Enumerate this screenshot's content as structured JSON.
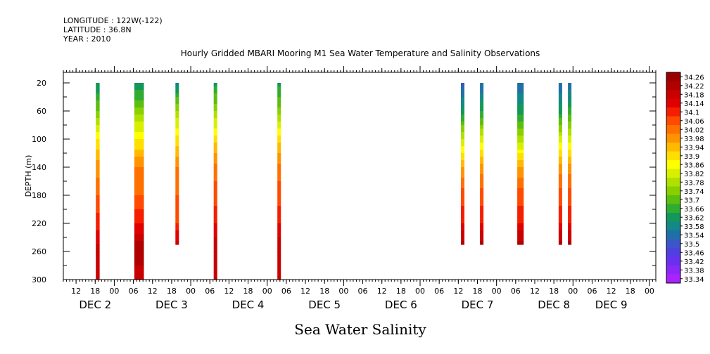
{
  "header": {
    "longitude": "LONGITUDE : 122W(-122)",
    "latitude": "LATITUDE : 36.8N",
    "year": "YEAR : 2010"
  },
  "chart_data": {
    "type": "heatmap",
    "title": "Hourly Gridded MBARI Mooring M1 Sea Water Temperature and Salinity Observations",
    "xlabel": "Sea Water Salinity",
    "ylabel": "DEPTH (m)",
    "x_unit": "hours since Dec 2 00:00, 2010",
    "xlim": [
      -16,
      170
    ],
    "ylim": [
      300,
      5
    ],
    "y_ticks": [
      20,
      60,
      100,
      140,
      180,
      220,
      260,
      300
    ],
    "x_hour_ticks": [
      {
        "h": -12,
        "label": "12"
      },
      {
        "h": -6,
        "label": "18"
      },
      {
        "h": 0,
        "label": "00"
      },
      {
        "h": 6,
        "label": "06"
      },
      {
        "h": 12,
        "label": "12"
      },
      {
        "h": 18,
        "label": "18"
      },
      {
        "h": 24,
        "label": "00"
      },
      {
        "h": 30,
        "label": "06"
      },
      {
        "h": 36,
        "label": "12"
      },
      {
        "h": 42,
        "label": "18"
      },
      {
        "h": 48,
        "label": "00"
      },
      {
        "h": 54,
        "label": "06"
      },
      {
        "h": 60,
        "label": "12"
      },
      {
        "h": 66,
        "label": "18"
      },
      {
        "h": 72,
        "label": "00"
      },
      {
        "h": 78,
        "label": "06"
      },
      {
        "h": 84,
        "label": "12"
      },
      {
        "h": 90,
        "label": "18"
      },
      {
        "h": 96,
        "label": "00"
      },
      {
        "h": 102,
        "label": "06"
      },
      {
        "h": 108,
        "label": "12"
      },
      {
        "h": 114,
        "label": "18"
      },
      {
        "h": 120,
        "label": "00"
      },
      {
        "h": 126,
        "label": "06"
      },
      {
        "h": 132,
        "label": "12"
      },
      {
        "h": 138,
        "label": "18"
      },
      {
        "h": 144,
        "label": "00"
      },
      {
        "h": 150,
        "label": "06"
      },
      {
        "h": 156,
        "label": "12"
      },
      {
        "h": 162,
        "label": "18"
      },
      {
        "h": 168,
        "label": "00"
      }
    ],
    "x_day_labels": [
      {
        "h": -6,
        "label": "DEC  2"
      },
      {
        "h": 18,
        "label": "DEC  3"
      },
      {
        "h": 42,
        "label": "DEC  4"
      },
      {
        "h": 66,
        "label": "DEC  5"
      },
      {
        "h": 90,
        "label": "DEC  6"
      },
      {
        "h": 114,
        "label": "DEC  7"
      },
      {
        "h": 138,
        "label": "DEC  8"
      },
      {
        "h": 156,
        "label": "DEC  9"
      }
    ],
    "colorbar": {
      "levels": [
        34.26,
        34.22,
        34.18,
        34.14,
        34.1,
        34.06,
        34.02,
        33.98,
        33.94,
        33.9,
        33.86,
        33.82,
        33.78,
        33.74,
        33.7,
        33.66,
        33.62,
        33.58,
        33.54,
        33.5,
        33.46,
        33.42,
        33.38,
        33.34
      ],
      "colors": [
        "#9b0000",
        "#b00000",
        "#c80000",
        "#e00000",
        "#f51e00",
        "#ff4a00",
        "#ff7000",
        "#ff9400",
        "#ffba00",
        "#ffdf00",
        "#ffff00",
        "#d8f000",
        "#b0e000",
        "#88d000",
        "#5cbe10",
        "#30ac30",
        "#13975a",
        "#138888",
        "#2070a8",
        "#3a56c8",
        "#5040e0",
        "#6a30f0",
        "#8a28f8",
        "#aa22ff"
      ]
    },
    "series": [
      {
        "time": -5.8,
        "duration": 1.2,
        "max_depth": 300,
        "profile": [
          [
            20,
            33.58
          ],
          [
            60,
            33.7
          ],
          [
            100,
            33.86
          ],
          [
            140,
            33.96
          ],
          [
            180,
            34.02
          ],
          [
            220,
            34.08
          ],
          [
            260,
            34.16
          ],
          [
            300,
            34.14
          ]
        ]
      },
      {
        "time": 6.3,
        "duration": 3.0,
        "max_depth": 300,
        "profile": [
          [
            20,
            33.58
          ],
          [
            60,
            33.72
          ],
          [
            100,
            33.86
          ],
          [
            140,
            33.98
          ],
          [
            180,
            34.02
          ],
          [
            220,
            34.1
          ],
          [
            260,
            34.22
          ],
          [
            300,
            34.14
          ]
        ]
      },
      {
        "time": 19.2,
        "duration": 1.0,
        "max_depth": 250,
        "profile": [
          [
            20,
            33.56
          ],
          [
            60,
            33.74
          ],
          [
            100,
            33.88
          ],
          [
            140,
            33.98
          ],
          [
            180,
            34.02
          ],
          [
            220,
            34.06
          ],
          [
            250,
            34.16
          ]
        ]
      },
      {
        "time": 31.2,
        "duration": 1.0,
        "max_depth": 300,
        "profile": [
          [
            20,
            33.6
          ],
          [
            60,
            33.74
          ],
          [
            100,
            33.88
          ],
          [
            140,
            34.0
          ],
          [
            180,
            34.04
          ],
          [
            220,
            34.1
          ],
          [
            260,
            34.18
          ],
          [
            300,
            34.14
          ]
        ]
      },
      {
        "time": 51.2,
        "duration": 1.0,
        "max_depth": 300,
        "profile": [
          [
            20,
            33.6
          ],
          [
            60,
            33.72
          ],
          [
            100,
            33.88
          ],
          [
            140,
            34.0
          ],
          [
            180,
            34.04
          ],
          [
            220,
            34.1
          ],
          [
            260,
            34.18
          ],
          [
            300,
            34.14
          ]
        ]
      },
      {
        "time": 108.8,
        "duration": 1.0,
        "max_depth": 250,
        "profile": [
          [
            20,
            33.48
          ],
          [
            60,
            33.6
          ],
          [
            100,
            33.78
          ],
          [
            140,
            33.94
          ],
          [
            180,
            34.04
          ],
          [
            220,
            34.1
          ],
          [
            250,
            34.2
          ]
        ]
      },
      {
        "time": 114.8,
        "duration": 1.0,
        "max_depth": 250,
        "profile": [
          [
            20,
            33.5
          ],
          [
            60,
            33.62
          ],
          [
            100,
            33.8
          ],
          [
            140,
            33.96
          ],
          [
            180,
            34.04
          ],
          [
            220,
            34.1
          ],
          [
            250,
            34.2
          ]
        ]
      },
      {
        "time": 126.5,
        "duration": 2.0,
        "max_depth": 250,
        "profile": [
          [
            20,
            33.5
          ],
          [
            60,
            33.6
          ],
          [
            100,
            33.76
          ],
          [
            140,
            33.94
          ],
          [
            180,
            34.04
          ],
          [
            220,
            34.1
          ],
          [
            250,
            34.2
          ]
        ]
      },
      {
        "time": 139.5,
        "duration": 0.9,
        "max_depth": 250,
        "profile": [
          [
            20,
            33.5
          ],
          [
            60,
            33.6
          ],
          [
            100,
            33.8
          ],
          [
            140,
            33.96
          ],
          [
            180,
            34.04
          ],
          [
            220,
            34.1
          ],
          [
            250,
            34.2
          ]
        ]
      },
      {
        "time": 142.4,
        "duration": 1.0,
        "max_depth": 250,
        "profile": [
          [
            20,
            33.5
          ],
          [
            60,
            33.64
          ],
          [
            100,
            33.8
          ],
          [
            140,
            33.96
          ],
          [
            180,
            34.04
          ],
          [
            220,
            34.1
          ],
          [
            250,
            34.2
          ]
        ]
      }
    ]
  }
}
